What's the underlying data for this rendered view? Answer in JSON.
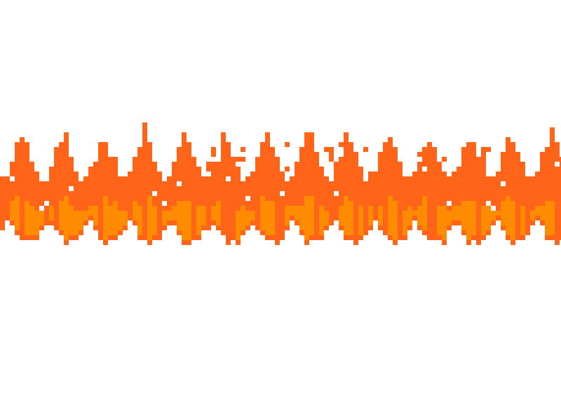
{
  "scene": {
    "description_free": true
  },
  "palette": {
    "background": "#ffffff",
    "outer_flame": "#ff6419",
    "inner_flame": "#ff8c00"
  },
  "flames": {
    "count": 13,
    "style": "pixelated"
  }
}
